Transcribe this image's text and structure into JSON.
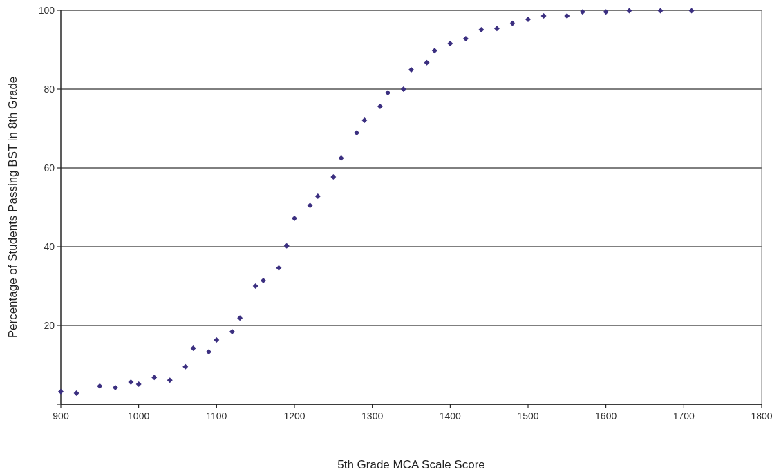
{
  "chart_data": {
    "type": "scatter",
    "xlabel": "5th Grade MCA Scale Score",
    "ylabel": "Percentage of Students Passing BST in 8th Grade",
    "x": [
      900,
      920,
      950,
      970,
      990,
      1000,
      1020,
      1040,
      1060,
      1070,
      1090,
      1100,
      1120,
      1130,
      1150,
      1160,
      1180,
      1190,
      1200,
      1220,
      1230,
      1250,
      1260,
      1280,
      1290,
      1310,
      1320,
      1340,
      1350,
      1370,
      1380,
      1400,
      1420,
      1440,
      1460,
      1480,
      1500,
      1520,
      1550,
      1570,
      1600,
      1630,
      1670,
      1710
    ],
    "series": [
      {
        "color": "#3b2f80",
        "values": [
          3.2,
          2.8,
          4.6,
          4.2,
          5.6,
          5.1,
          6.8,
          6.1,
          9.5,
          14.2,
          13.3,
          16.3,
          18.4,
          21.9,
          30.0,
          31.4,
          34.6,
          40.2,
          47.2,
          50.5,
          52.8,
          57.7,
          62.5,
          68.9,
          72.1,
          75.6,
          79.1,
          80.0,
          84.9,
          86.7,
          89.8,
          91.6,
          92.8,
          95.1,
          95.4,
          96.7,
          97.7,
          98.6,
          98.6,
          99.6,
          99.6,
          99.9,
          99.9,
          99.9
        ]
      }
    ],
    "xlim": [
      900,
      1800
    ],
    "xticks": [
      900,
      1000,
      1100,
      1200,
      1300,
      1400,
      1500,
      1600,
      1700,
      1800
    ],
    "ylim": [
      0,
      100
    ],
    "yticks": [
      {
        "value": 0,
        "label": null
      },
      20,
      40,
      60,
      80,
      100
    ],
    "grid": "y",
    "marker": "diamond"
  }
}
